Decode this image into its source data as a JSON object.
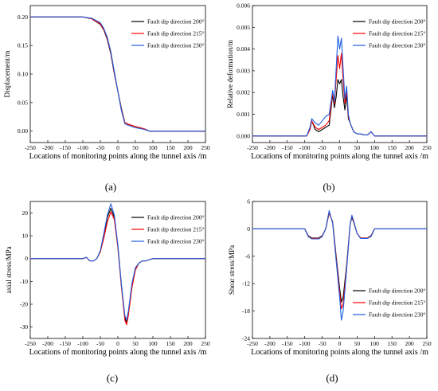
{
  "figure": {
    "panel_labels": [
      "(a)",
      "(b)",
      "(c)",
      "(d)"
    ]
  },
  "chart_data": [
    {
      "type": "line",
      "xlabel": "Locations of monitoring points along the tunnel axis /m",
      "ylabel": "Displacement/m",
      "xlim": [
        -250,
        250
      ],
      "ylim": [
        -0.02,
        0.22
      ],
      "xticks": [
        -250,
        -200,
        -150,
        -100,
        -50,
        0,
        50,
        100,
        150,
        200,
        250
      ],
      "yticks": [
        0.0,
        0.05,
        0.1,
        0.15,
        0.2
      ],
      "ytick_labels": [
        "0.00",
        "0.05",
        "0.10",
        "0.15",
        "0.20"
      ],
      "legend_position": "top-right",
      "series": [
        {
          "name": "Fault dip direction 200°",
          "color": "#000000",
          "x": [
            -250,
            -100,
            -75,
            -50,
            -40,
            -30,
            -20,
            -10,
            0,
            10,
            20,
            30,
            50,
            75,
            90,
            250
          ],
          "y": [
            0.2,
            0.2,
            0.197,
            0.187,
            0.177,
            0.16,
            0.135,
            0.1,
            0.07,
            0.04,
            0.015,
            0.012,
            0.008,
            0.004,
            0.0,
            0.0
          ]
        },
        {
          "name": "Fault dip direction 215°",
          "color": "#ff0000",
          "x": [
            -250,
            -100,
            -75,
            -50,
            -40,
            -30,
            -20,
            -10,
            0,
            10,
            20,
            30,
            50,
            75,
            90,
            250
          ],
          "y": [
            0.2,
            0.2,
            0.197,
            0.188,
            0.178,
            0.162,
            0.137,
            0.102,
            0.07,
            0.038,
            0.015,
            0.012,
            0.008,
            0.004,
            0.0,
            0.0
          ]
        },
        {
          "name": "Fault dip direction 230°",
          "color": "#1f5fe0",
          "x": [
            -250,
            -100,
            -75,
            -50,
            -40,
            -30,
            -20,
            -10,
            0,
            10,
            20,
            30,
            50,
            75,
            90,
            250
          ],
          "y": [
            0.2,
            0.2,
            0.198,
            0.19,
            0.18,
            0.164,
            0.139,
            0.104,
            0.07,
            0.036,
            0.013,
            0.01,
            0.006,
            0.003,
            0.0,
            0.0
          ]
        }
      ]
    },
    {
      "type": "line",
      "xlabel": "Locations of monitoring points along the tunnel axis /m",
      "ylabel": "Relative deformation/m",
      "xlim": [
        -250,
        250
      ],
      "ylim": [
        -0.0003,
        0.006
      ],
      "xticks": [
        -250,
        -200,
        -150,
        -100,
        -50,
        0,
        50,
        100,
        150,
        200,
        250
      ],
      "yticks": [
        0.0,
        0.001,
        0.002,
        0.003,
        0.004,
        0.005,
        0.006
      ],
      "ytick_labels": [
        "0.000",
        "0.001",
        "0.002",
        "0.003",
        "0.004",
        "0.005",
        "0.006"
      ],
      "legend_position": "top-right",
      "series": [
        {
          "name": "Fault dip direction 200°",
          "color": "#000000",
          "x": [
            -250,
            -95,
            -85,
            -80,
            -70,
            -60,
            -50,
            -40,
            -30,
            -20,
            -15,
            -10,
            -5,
            0,
            5,
            10,
            15,
            20,
            25,
            30,
            40,
            50,
            60,
            70,
            80,
            90,
            100,
            250
          ],
          "y": [
            0,
            0,
            0.0003,
            0.0007,
            0.0003,
            0.0002,
            0.0003,
            0.0004,
            0.0005,
            0.0019,
            0.0013,
            0.0018,
            0.0026,
            0.0024,
            0.0026,
            0.0018,
            0.0012,
            0.0019,
            0.0008,
            0.0006,
            0.0002,
            0.0001,
            0.0001,
            5e-05,
            5e-05,
            0.0002,
            0,
            0
          ]
        },
        {
          "name": "Fault dip direction 215°",
          "color": "#ff0000",
          "x": [
            -250,
            -95,
            -85,
            -80,
            -70,
            -60,
            -50,
            -40,
            -30,
            -20,
            -15,
            -10,
            -5,
            0,
            5,
            10,
            15,
            20,
            25,
            30,
            40,
            50,
            60,
            70,
            80,
            90,
            100,
            250
          ],
          "y": [
            0,
            0,
            0.0003,
            0.0007,
            0.0004,
            0.0003,
            0.0004,
            0.0005,
            0.0007,
            0.002,
            0.0015,
            0.0026,
            0.0037,
            0.0031,
            0.0038,
            0.0026,
            0.0015,
            0.0021,
            0.0009,
            0.0006,
            0.0002,
            0.0001,
            0.0001,
            5e-05,
            5e-05,
            0.0002,
            0,
            0
          ]
        },
        {
          "name": "Fault dip direction 230°",
          "color": "#1f5fe0",
          "x": [
            -250,
            -95,
            -85,
            -80,
            -70,
            -60,
            -50,
            -40,
            -30,
            -20,
            -15,
            -10,
            -5,
            0,
            5,
            10,
            15,
            20,
            25,
            30,
            40,
            50,
            60,
            70,
            80,
            90,
            100,
            250
          ],
          "y": [
            0,
            0,
            0.0004,
            0.0008,
            0.0006,
            0.0005,
            0.0007,
            0.0009,
            0.001,
            0.0021,
            0.0016,
            0.0031,
            0.0046,
            0.004,
            0.0045,
            0.0031,
            0.0017,
            0.0023,
            0.001,
            0.0006,
            0.0002,
            0.0001,
            0.0001,
            5e-05,
            5e-05,
            0.0002,
            0,
            0
          ]
        }
      ]
    },
    {
      "type": "line",
      "xlabel": "Locations of monitoring points along the tunnel axis /m",
      "ylabel": "axial stress/MPa",
      "xlim": [
        -250,
        250
      ],
      "ylim": [
        -35,
        25
      ],
      "xticks": [
        -250,
        -200,
        -150,
        -100,
        -50,
        0,
        50,
        100,
        150,
        200,
        250
      ],
      "yticks": [
        -30,
        -20,
        -10,
        0,
        10,
        20
      ],
      "ytick_labels": [
        "-30",
        "-20",
        "-10",
        "0",
        "10",
        "20"
      ],
      "legend_position": "top-right",
      "series": [
        {
          "name": "Fault dip direction 200°",
          "color": "#000000",
          "x": [
            -250,
            -100,
            -90,
            -80,
            -70,
            -60,
            -50,
            -40,
            -30,
            -20,
            -10,
            0,
            10,
            20,
            25,
            30,
            40,
            50,
            60,
            70,
            80,
            90,
            100,
            250
          ],
          "y": [
            0,
            0,
            0.5,
            -1,
            -1,
            0,
            3,
            10,
            18,
            22,
            18,
            5,
            -12,
            -26,
            -28,
            -24,
            -12,
            -5,
            -2,
            -1,
            -1,
            -0.5,
            0,
            0
          ]
        },
        {
          "name": "Fault dip direction 215°",
          "color": "#ff0000",
          "x": [
            -250,
            -100,
            -90,
            -80,
            -70,
            -60,
            -50,
            -40,
            -30,
            -20,
            -10,
            0,
            10,
            20,
            25,
            30,
            40,
            50,
            60,
            70,
            80,
            90,
            100,
            250
          ],
          "y": [
            0,
            0,
            0.5,
            -1,
            -1,
            0,
            3,
            9,
            16,
            20.5,
            17,
            5,
            -12,
            -27,
            -29,
            -25,
            -13,
            -5,
            -2,
            -1,
            -1,
            -0.5,
            0,
            0
          ]
        },
        {
          "name": "Fault dip direction 230°",
          "color": "#1f5fe0",
          "x": [
            -250,
            -100,
            -90,
            -80,
            -70,
            -60,
            -50,
            -40,
            -30,
            -20,
            -10,
            0,
            10,
            20,
            25,
            30,
            40,
            50,
            60,
            70,
            80,
            90,
            100,
            250
          ],
          "y": [
            0,
            0,
            0.6,
            -1,
            -1,
            0,
            3.5,
            11,
            19,
            24,
            19,
            6,
            -11,
            -25,
            -27,
            -23,
            -11,
            -4,
            -2,
            -1,
            -1,
            -0.5,
            0,
            0
          ]
        }
      ]
    },
    {
      "type": "line",
      "xlabel": "Locations of monitoring points along the tunnel axis /m",
      "ylabel": "Shear stress/MPa",
      "xlim": [
        -250,
        250
      ],
      "ylim": [
        -24,
        6
      ],
      "xticks": [
        -250,
        -200,
        -150,
        -100,
        -50,
        0,
        50,
        100,
        150,
        200,
        250
      ],
      "yticks": [
        -24,
        -18,
        -12,
        -6,
        0,
        6
      ],
      "ytick_labels": [
        "-24",
        "-18",
        "-12",
        "-6",
        "0",
        "6"
      ],
      "legend_position": "bottom-right",
      "series": [
        {
          "name": "Fault dip direction 200°",
          "color": "#000000",
          "x": [
            -250,
            -100,
            -90,
            -80,
            -70,
            -60,
            -50,
            -40,
            -30,
            -20,
            -10,
            0,
            5,
            10,
            20,
            30,
            35,
            40,
            50,
            60,
            70,
            80,
            90,
            100,
            250
          ],
          "y": [
            0,
            0,
            -1.5,
            -2,
            -2,
            -2,
            -1.5,
            0,
            3.5,
            1.5,
            -6,
            -13,
            -16,
            -15,
            -8,
            1,
            2.5,
            1.5,
            -1,
            -2,
            -2,
            -2,
            -1.5,
            0,
            0
          ]
        },
        {
          "name": "Fault dip direction 215°",
          "color": "#ff0000",
          "x": [
            -250,
            -100,
            -90,
            -80,
            -70,
            -60,
            -50,
            -40,
            -30,
            -20,
            -10,
            0,
            5,
            10,
            20,
            30,
            35,
            40,
            50,
            60,
            70,
            80,
            90,
            100,
            250
          ],
          "y": [
            0,
            0,
            -1.6,
            -2.1,
            -2.1,
            -2.1,
            -1.6,
            0,
            3.7,
            1.3,
            -6.5,
            -14,
            -17.5,
            -16.5,
            -8.5,
            1,
            2.8,
            1.6,
            -1,
            -2,
            -2,
            -2,
            -1.6,
            0,
            0
          ]
        },
        {
          "name": "Fault dip direction 230°",
          "color": "#1f5fe0",
          "x": [
            -250,
            -100,
            -90,
            -80,
            -70,
            -60,
            -50,
            -40,
            -30,
            -20,
            -10,
            0,
            5,
            10,
            20,
            30,
            35,
            40,
            50,
            60,
            70,
            80,
            90,
            100,
            250
          ],
          "y": [
            0,
            0,
            -1.7,
            -2.2,
            -2.2,
            -2.2,
            -1.7,
            0,
            4,
            1.2,
            -7,
            -15,
            -20,
            -18,
            -9,
            1,
            3,
            1.8,
            -1,
            -2.1,
            -2.1,
            -2.1,
            -1.7,
            0,
            0
          ]
        }
      ]
    }
  ]
}
